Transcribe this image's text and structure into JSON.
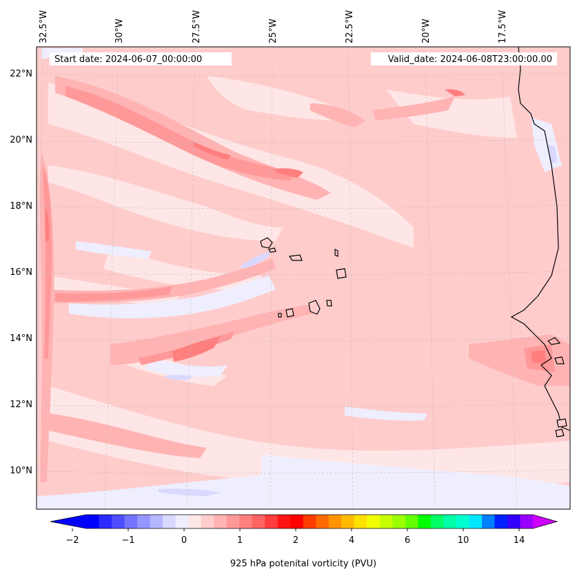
{
  "header": {
    "start_date": "Start date: 2024-06-07_00:00:00",
    "valid_date": "Valid_date: 2024-06-08T23:00:00.00"
  },
  "lon_labels": [
    "32.5°W",
    "30°W",
    "27.5°W",
    "25°W",
    "22.5°W",
    "20°W",
    "17.5°W"
  ],
  "lat_labels": [
    "22°N",
    "20°N",
    "18°N",
    "16°N",
    "14°N",
    "12°N",
    "10°N"
  ],
  "colorbar": {
    "label": "925 hPa potenital vorticity (PVU)",
    "tick_labels": [
      "−2",
      "−1",
      "0",
      "1",
      "2",
      "4",
      "6",
      "10",
      "14"
    ],
    "colors": [
      "#0000ff",
      "#2b2bff",
      "#4e4eff",
      "#7474ff",
      "#9595ff",
      "#b6b6ff",
      "#d9d9ff",
      "#eeeeff",
      "#ffe6e6",
      "#ffcccc",
      "#ffb3b3",
      "#ff9999",
      "#ff7f7f",
      "#ff6464",
      "#ff3d3d",
      "#ff1414",
      "#ff0000",
      "#ff3c00",
      "#ff6a00",
      "#ff9400",
      "#ffbb00",
      "#ffe100",
      "#f2ff00",
      "#c8ff00",
      "#9bff00",
      "#66ff00",
      "#00ff00",
      "#00ff66",
      "#00ffaa",
      "#00ffd0",
      "#00e6ff",
      "#0080ff",
      "#0020ff",
      "#3300ff",
      "#9900ff"
    ],
    "under_color": "#0000ff",
    "over_color": "#cc00ff"
  },
  "map_colors": {
    "background": "#ffcccc",
    "weak_pos": "#ffe6e6",
    "mid_pos": "#ffb3b3",
    "strong_pos": "#ff9999",
    "stronger_pos": "#ff7f7f",
    "near_zero_neg": "#eeeeff",
    "neg": "#d9d9ff",
    "coast": "#000000"
  }
}
